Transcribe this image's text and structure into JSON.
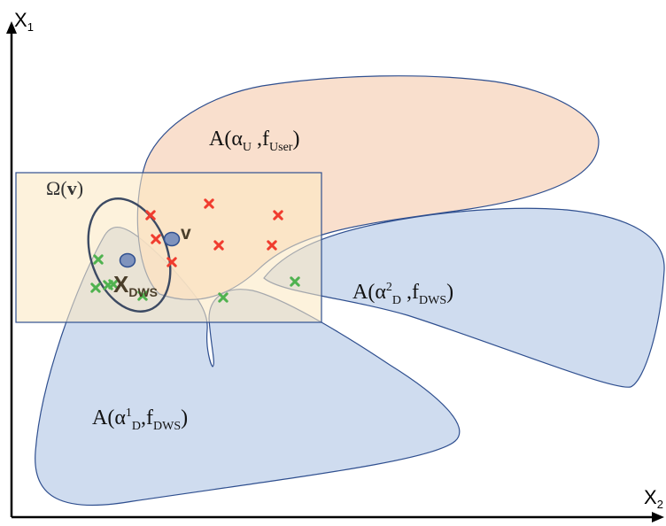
{
  "axes": {
    "y_label": "X",
    "y_label_sub": "1",
    "x_label": "X",
    "x_label_sub": "2"
  },
  "regions": {
    "user": {
      "base": "A(",
      "alpha": "α",
      "alpha_sub": "U",
      "comma": " ,",
      "f": "f",
      "f_sub": "User",
      "close": ")"
    },
    "dws2": {
      "base": "A(",
      "alpha": "α",
      "alpha_sup": "2",
      "alpha_sub": "D",
      "comma": " ,",
      "f": "f",
      "f_sub": "DWS",
      "close": ")"
    },
    "dws1": {
      "base": "A(",
      "alpha": "α",
      "alpha_sup": "1",
      "alpha_sub": "D",
      "comma": ",",
      "f": "f",
      "f_sub": "DWS",
      "close": ")"
    }
  },
  "omega": {
    "label": "Ω(",
    "bold": "v",
    "close": ")"
  },
  "points": {
    "v_label": "v",
    "xdws_label": "X",
    "xdws_sub": "DWS"
  },
  "colors": {
    "user_fill": "#f8d9c4",
    "dws_fill": "#c5d4ec",
    "omega_fill": "#fcefd2",
    "outline_blue": "#2f4f8f",
    "point_fill": "#7f93bd",
    "marker_red": "#f03c2e",
    "marker_green": "#4fb24f",
    "axis": "#000000"
  },
  "markers": {
    "red": [
      [
        170,
        243
      ],
      [
        236,
        230
      ],
      [
        314,
        243
      ],
      [
        176,
        270
      ],
      [
        247,
        277
      ],
      [
        307,
        277
      ],
      [
        194,
        296
      ]
    ],
    "green": [
      [
        111,
        293
      ],
      [
        108,
        325
      ],
      [
        122,
        322
      ],
      [
        128,
        321
      ],
      [
        161,
        334
      ],
      [
        252,
        336
      ],
      [
        333,
        318
      ]
    ]
  }
}
